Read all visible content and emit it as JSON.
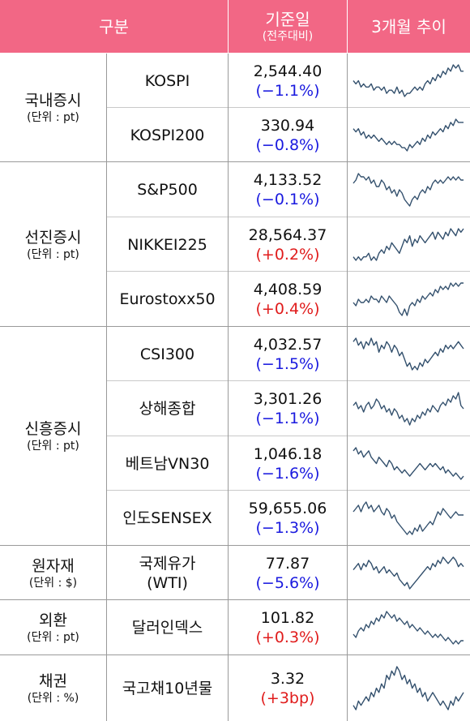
{
  "header": {
    "category": "구분",
    "base_date": "기준일",
    "base_date_sub": "(전주대비)",
    "trend": "3개월 추이"
  },
  "groups": [
    {
      "name": "국내증시",
      "unit": "(단위 : pt)"
    },
    {
      "name": "선진증시",
      "unit": "(단위 : pt)"
    },
    {
      "name": "신흥증시",
      "unit": "(단위 : pt)"
    },
    {
      "name": "원자재",
      "unit": "(단위 : $)"
    },
    {
      "name": "외환",
      "unit": "(단위 : pt)"
    },
    {
      "name": "채권",
      "unit": "(단위 : %)"
    }
  ],
  "rows": [
    {
      "name": "KOSPI",
      "value": "2,544.40",
      "change": "(−1.1%)",
      "dir": "down",
      "trend": [
        5,
        4,
        5,
        3,
        4,
        3,
        3,
        4,
        2,
        3,
        3,
        2,
        3,
        1,
        2,
        2,
        1,
        3,
        1,
        2,
        0,
        1,
        1,
        2,
        3,
        2,
        3,
        2,
        4,
        5,
        4,
        6,
        5,
        7,
        6,
        8,
        7,
        9,
        8,
        10,
        9,
        10,
        8,
        8
      ]
    },
    {
      "name": "KOSPI200",
      "value": "330.94",
      "change": "(−0.8%)",
      "dir": "down",
      "trend": [
        7,
        6,
        7,
        5,
        6,
        4,
        5,
        4,
        5,
        4,
        3,
        4,
        3,
        2,
        3,
        2,
        3,
        2,
        2,
        1,
        1,
        0,
        2,
        1,
        2,
        3,
        2,
        4,
        3,
        5,
        4,
        6,
        5,
        6,
        7,
        6,
        8,
        7,
        9,
        8,
        10,
        9,
        9,
        9
      ]
    },
    {
      "name": "S&P500",
      "value": "4,133.52",
      "change": "(−0.1%)",
      "dir": "down",
      "trend": [
        7,
        8,
        10,
        9,
        9,
        8,
        9,
        7,
        8,
        6,
        6,
        8,
        7,
        5,
        6,
        4,
        5,
        3,
        5,
        4,
        2,
        1,
        0,
        2,
        3,
        2,
        4,
        5,
        4,
        6,
        5,
        7,
        8,
        7,
        8,
        7,
        8,
        9,
        8,
        9,
        8,
        9,
        8,
        8
      ]
    },
    {
      "name": "NIKKEI225",
      "value": "28,564.37",
      "change": "(+0.2%)",
      "dir": "up",
      "trend": [
        2,
        1,
        2,
        1,
        2,
        2,
        3,
        1,
        2,
        1,
        3,
        4,
        3,
        5,
        4,
        6,
        5,
        4,
        3,
        5,
        7,
        6,
        8,
        5,
        7,
        6,
        8,
        7,
        6,
        7,
        8,
        9,
        7,
        9,
        8,
        7,
        9,
        8,
        10,
        9,
        8,
        10,
        9,
        10
      ]
    },
    {
      "name": "Eurostoxx50",
      "value": "4,408.59",
      "change": "(+0.4%)",
      "dir": "up",
      "trend": [
        4,
        3,
        5,
        4,
        4,
        5,
        4,
        6,
        5,
        5,
        4,
        6,
        5,
        4,
        6,
        5,
        4,
        3,
        1,
        0,
        2,
        0,
        3,
        4,
        3,
        5,
        4,
        6,
        5,
        6,
        7,
        6,
        8,
        7,
        9,
        8,
        9,
        8,
        10,
        9,
        10,
        9,
        10,
        10
      ]
    },
    {
      "name": "CSI300",
      "value": "4,032.57",
      "change": "(−1.5%)",
      "dir": "down",
      "trend": [
        9,
        10,
        8,
        9,
        7,
        9,
        8,
        10,
        8,
        9,
        6,
        8,
        7,
        9,
        8,
        6,
        8,
        7,
        5,
        6,
        4,
        2,
        3,
        1,
        2,
        1,
        3,
        2,
        4,
        3,
        4,
        5,
        6,
        5,
        7,
        6,
        8,
        7,
        8,
        7,
        8,
        9,
        8,
        7
      ]
    },
    {
      "name": "상해종합",
      "value": "3,301.26",
      "change": "(−1.1%)",
      "dir": "down",
      "trend": [
        6,
        7,
        5,
        6,
        4,
        6,
        7,
        5,
        6,
        8,
        7,
        5,
        6,
        4,
        5,
        3,
        5,
        4,
        2,
        3,
        1,
        2,
        0,
        2,
        1,
        3,
        2,
        4,
        3,
        5,
        4,
        6,
        5,
        4,
        6,
        7,
        6,
        8,
        7,
        9,
        8,
        10,
        6,
        5
      ]
    },
    {
      "name": "베트남VN30",
      "value": "1,046.18",
      "change": "(−1.6%)",
      "dir": "down",
      "trend": [
        9,
        10,
        8,
        9,
        7,
        8,
        9,
        7,
        6,
        5,
        7,
        6,
        5,
        4,
        6,
        5,
        3,
        4,
        3,
        2,
        3,
        2,
        1,
        2,
        3,
        4,
        5,
        4,
        3,
        4,
        5,
        4,
        5,
        4,
        3,
        4,
        2,
        3,
        2,
        1,
        2,
        1,
        0,
        1
      ]
    },
    {
      "name": "인도SENSEX",
      "value": "59,655.06",
      "change": "(−1.3%)",
      "dir": "down",
      "trend": [
        7,
        8,
        9,
        7,
        9,
        10,
        8,
        9,
        7,
        8,
        9,
        7,
        6,
        8,
        7,
        5,
        6,
        4,
        3,
        2,
        1,
        0,
        1,
        0,
        2,
        1,
        3,
        1,
        2,
        3,
        4,
        3,
        5,
        7,
        6,
        8,
        7,
        6,
        5,
        6,
        7,
        6,
        6,
        6
      ]
    },
    {
      "name": "국제유가\n(WTI)",
      "value": "77.87",
      "change": "(−5.6%)",
      "dir": "down",
      "trend": [
        6,
        7,
        8,
        6,
        8,
        7,
        9,
        8,
        6,
        7,
        5,
        6,
        7,
        5,
        6,
        5,
        4,
        5,
        3,
        2,
        1,
        2,
        0,
        1,
        2,
        3,
        4,
        5,
        6,
        7,
        6,
        8,
        7,
        9,
        8,
        10,
        9,
        8,
        9,
        10,
        9,
        7,
        8,
        7
      ]
    },
    {
      "name": "달러인덱스",
      "value": "101.82",
      "change": "(+0.3%)",
      "dir": "up",
      "trend": [
        3,
        2,
        4,
        5,
        4,
        6,
        5,
        7,
        6,
        8,
        7,
        9,
        8,
        10,
        9,
        8,
        9,
        7,
        8,
        7,
        6,
        7,
        5,
        6,
        5,
        4,
        5,
        4,
        3,
        4,
        3,
        2,
        3,
        2,
        3,
        2,
        1,
        2,
        1,
        0,
        1,
        0,
        1,
        1
      ]
    },
    {
      "name": "국고채10년물",
      "value": "3.32",
      "change": "(+3bp)",
      "dir": "up",
      "trend": [
        1,
        0,
        2,
        1,
        2,
        3,
        2,
        4,
        3,
        5,
        4,
        6,
        5,
        8,
        7,
        9,
        8,
        10,
        9,
        7,
        8,
        6,
        7,
        5,
        6,
        4,
        5,
        3,
        4,
        2,
        3,
        4,
        3,
        2,
        1,
        2,
        1,
        0,
        2,
        1,
        3,
        2,
        3,
        4
      ]
    }
  ]
}
